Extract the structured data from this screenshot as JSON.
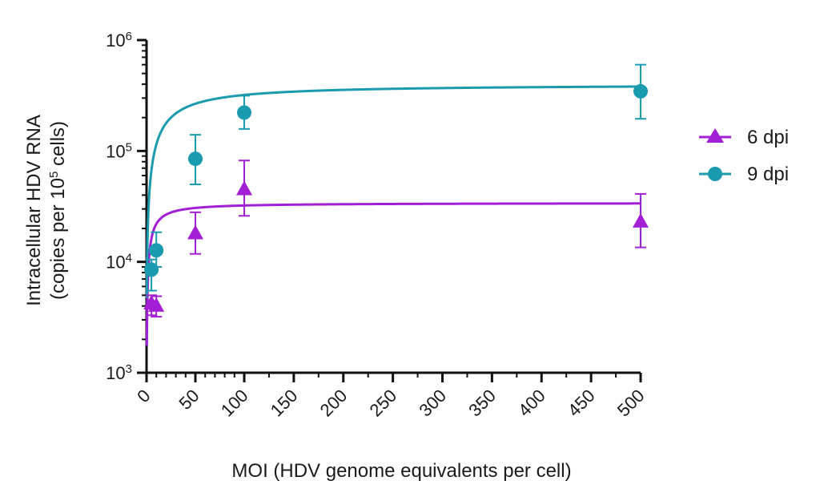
{
  "chart_data": {
    "type": "scatter",
    "xlabel": "MOI (HDV genome equivalents per cell)",
    "ylabel_line1": "Intracellular HDV RNA",
    "ylabel_line2_prefix": "(copies per 10",
    "ylabel_line2_sup": "5",
    "ylabel_line2_suffix": " cells)",
    "x_scale": "broken-linear",
    "x_ticks": [
      0,
      50,
      100,
      150,
      200,
      250,
      300,
      350,
      400,
      450,
      500
    ],
    "x_tick_labels": [
      "0",
      "50",
      "100",
      "150",
      "200",
      "250",
      "300",
      "350",
      "400",
      "450",
      "500"
    ],
    "y_scale": "log",
    "ylim": [
      1000,
      1000000
    ],
    "y_ticks": [
      {
        "value": 1000,
        "base": "10",
        "exp": "3"
      },
      {
        "value": 10000,
        "base": "10",
        "exp": "4"
      },
      {
        "value": 100000,
        "base": "10",
        "exp": "5"
      },
      {
        "value": 1000000,
        "base": "10",
        "exp": "6"
      }
    ],
    "legend_position": "right",
    "series": [
      {
        "name": "6 dpi",
        "color": "#a31fd6",
        "marker": "triangle",
        "points": [
          {
            "x": 5,
            "y": 4200,
            "ylow": 3300,
            "yhigh": 5000
          },
          {
            "x": 10,
            "y": 4000,
            "ylow": 3200,
            "yhigh": 4900
          },
          {
            "x": 50,
            "y": 18000,
            "ylow": 11800,
            "yhigh": 28000
          },
          {
            "x": 100,
            "y": 45000,
            "ylow": 26000,
            "yhigh": 82000
          },
          {
            "x": 500,
            "y": 23000,
            "ylow": 13500,
            "yhigh": 41000
          }
        ],
        "fit": {
          "model": "hyperbolic",
          "ymax": 34000,
          "half_x": 5.5
        }
      },
      {
        "name": "9 dpi",
        "color": "#1a9bb0",
        "marker": "circle",
        "points": [
          {
            "x": 5,
            "y": 8500,
            "ylow": 5500,
            "yhigh": 10500
          },
          {
            "x": 10,
            "y": 12700,
            "ylow": 9000,
            "yhigh": 18500
          },
          {
            "x": 50,
            "y": 85000,
            "ylow": 50000,
            "yhigh": 140000
          },
          {
            "x": 100,
            "y": 222000,
            "ylow": 158000,
            "yhigh": 315000
          },
          {
            "x": 500,
            "y": 345000,
            "ylow": 195000,
            "yhigh": 600000
          }
        ],
        "fit": {
          "model": "hyperbolic",
          "ymax": 400000,
          "half_x": 25
        }
      }
    ]
  }
}
